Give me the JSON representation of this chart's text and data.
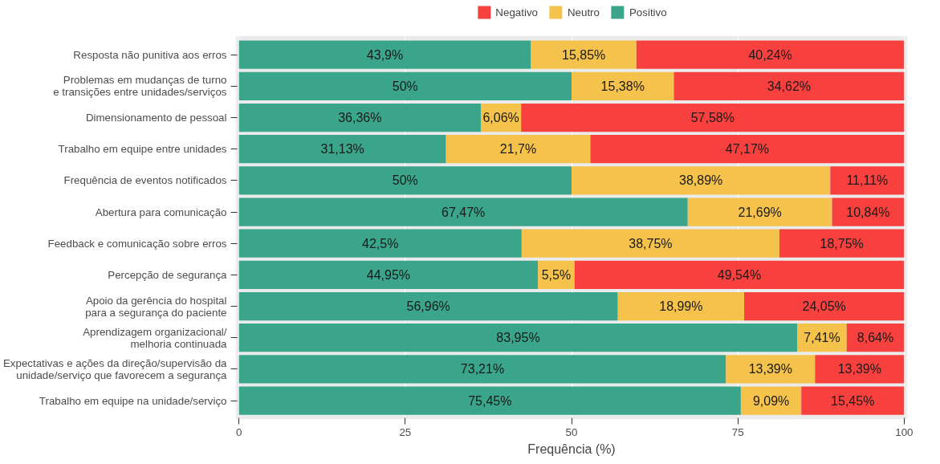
{
  "chart_data": {
    "type": "bar",
    "orientation": "horizontal",
    "stacked": true,
    "xlabel": "Frequência (%)",
    "categories": [
      "Resposta não punitiva aos erros",
      "Problemas em mudanças de turno\ne transições entre unidades/serviços",
      "Dimensionamento de pessoal",
      "Trabalho em equipe entre unidades",
      "Frequência de eventos notificados",
      "Abertura para comunicação",
      "Feedback e comunicação sobre erros",
      "Percepção de segurança",
      "Apoio da gerência do hospital\npara a segurança do paciente",
      "Aprendizagem organizacional/\nmelhoria continuada",
      "Expectativas e ações da direção/supervisão da\nunidade/serviço que favorecem a segurança",
      "Trabalho em equipe na unidade/serviço"
    ],
    "series": [
      {
        "name": "Positivo",
        "color": "#3aa58a",
        "values": [
          43.9,
          50,
          36.36,
          31.13,
          50,
          67.47,
          42.5,
          44.95,
          56.96,
          83.95,
          73.21,
          75.45
        ],
        "value_labels": [
          "43,9%",
          "50%",
          "36,36%",
          "31,13%",
          "50%",
          "67,47%",
          "42,5%",
          "44,95%",
          "56,96%",
          "83,95%",
          "73,21%",
          "75,45%"
        ]
      },
      {
        "name": "Neutro",
        "color": "#f5c24b",
        "values": [
          15.85,
          15.38,
          6.06,
          21.7,
          38.89,
          21.69,
          38.75,
          5.5,
          18.99,
          7.41,
          13.39,
          9.09
        ],
        "value_labels": [
          "15,85%",
          "15,38%",
          "6,06%",
          "21,7%",
          "38,89%",
          "21,69%",
          "38,75%",
          "5,5%",
          "18,99%",
          "7,41%",
          "13,39%",
          "9,09%"
        ]
      },
      {
        "name": "Negativo",
        "color": "#f8403f",
        "values": [
          40.24,
          34.62,
          57.58,
          47.17,
          11.11,
          10.84,
          18.75,
          49.54,
          24.05,
          8.64,
          13.39,
          15.45
        ],
        "value_labels": [
          "40,24%",
          "34,62%",
          "57,58%",
          "47,17%",
          "11,11%",
          "10,84%",
          "18,75%",
          "49,54%",
          "24,05%",
          "8,64%",
          "13,39%",
          "15,45%"
        ]
      }
    ],
    "xlim": [
      -0.5,
      100.5
    ],
    "xticks": [
      0,
      25,
      50,
      75,
      100
    ],
    "grid": "x",
    "legend": "top"
  }
}
